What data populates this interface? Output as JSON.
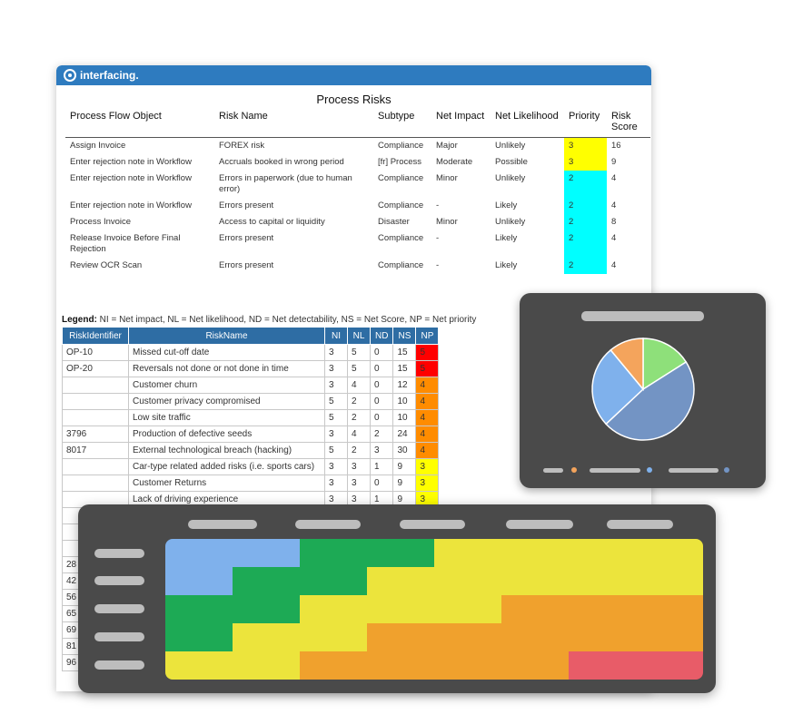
{
  "brand": {
    "name": "interfacing."
  },
  "report": {
    "title": "Process Risks",
    "columns": [
      "Process Flow Object",
      "Risk Name",
      "Subtype",
      "Net Impact",
      "Net Likelihood",
      "Priority",
      "Risk Score"
    ],
    "rows": [
      {
        "object": "Assign Invoice",
        "risk": "FOREX risk",
        "subtype": "Compliance",
        "impact": "Major",
        "likelihood": "Unlikely",
        "priority": "3",
        "score": "16"
      },
      {
        "object": "Enter rejection note in Workflow",
        "risk": "Accruals booked in wrong period",
        "subtype": "[fr] Process",
        "impact": "Moderate",
        "likelihood": "Possible",
        "priority": "3",
        "score": "9"
      },
      {
        "object": "Enter rejection note in Workflow",
        "risk": "Errors in paperwork (due to human error)",
        "subtype": "Compliance",
        "impact": "Minor",
        "likelihood": "Unlikely",
        "priority": "2",
        "score": "4"
      },
      {
        "object": "Enter rejection note in Workflow",
        "risk": "Errors present",
        "subtype": "Compliance",
        "impact": "-",
        "likelihood": "Likely",
        "priority": "2",
        "score": "4"
      },
      {
        "object": "Process Invoice",
        "risk": "Access to capital or liquidity",
        "subtype": "Disaster",
        "impact": "Minor",
        "likelihood": "Unlikely",
        "priority": "2",
        "score": "8"
      },
      {
        "object": "Release Invoice Before Final Rejection",
        "risk": "Errors present",
        "subtype": "Compliance",
        "impact": "-",
        "likelihood": "Likely",
        "priority": "2",
        "score": "4"
      },
      {
        "object": "Review OCR Scan",
        "risk": "Errors present",
        "subtype": "Compliance",
        "impact": "-",
        "likelihood": "Likely",
        "priority": "2",
        "score": "4"
      }
    ],
    "priority_colors": {
      "3": "#ffff00",
      "2": "#00ffff"
    }
  },
  "legend": {
    "label": "Legend:",
    "text": "NI = Net impact, NL = Net likelihood, ND = Net detectability, NS = Net Score, NP = Net priority",
    "columns": [
      "RiskIdentifier",
      "RiskName",
      "NI",
      "NL",
      "ND",
      "NS",
      "NP"
    ],
    "rows": [
      {
        "id": "OP-10",
        "name": "Missed cut-off date",
        "ni": "3",
        "nl": "5",
        "nd": "0",
        "ns": "15",
        "np": "5",
        "np_color": "#ff0000"
      },
      {
        "id": "OP-20",
        "name": "Reversals not done or not done in time",
        "ni": "3",
        "nl": "5",
        "nd": "0",
        "ns": "15",
        "np": "5",
        "np_color": "#ff0000"
      },
      {
        "id": "",
        "name": "Customer churn",
        "ni": "3",
        "nl": "4",
        "nd": "0",
        "ns": "12",
        "np": "4",
        "np_color": "#ff8c00"
      },
      {
        "id": "",
        "name": "Customer privacy compromised",
        "ni": "5",
        "nl": "2",
        "nd": "0",
        "ns": "10",
        "np": "4",
        "np_color": "#ff8c00"
      },
      {
        "id": "",
        "name": "Low site traffic",
        "ni": "5",
        "nl": "2",
        "nd": "0",
        "ns": "10",
        "np": "4",
        "np_color": "#ff8c00"
      },
      {
        "id": "3796",
        "name": "Production of defective seeds",
        "ni": "3",
        "nl": "4",
        "nd": "2",
        "ns": "24",
        "np": "4",
        "np_color": "#ff8c00"
      },
      {
        "id": "8017",
        "name": "External technological breach (hacking)",
        "ni": "5",
        "nl": "2",
        "nd": "3",
        "ns": "30",
        "np": "4",
        "np_color": "#ff8c00"
      },
      {
        "id": "",
        "name": "Car-type related added risks (i.e. sports cars)",
        "ni": "3",
        "nl": "3",
        "nd": "1",
        "ns": "9",
        "np": "3",
        "np_color": "#ffff00"
      },
      {
        "id": "",
        "name": "Customer Returns",
        "ni": "3",
        "nl": "3",
        "nd": "0",
        "ns": "9",
        "np": "3",
        "np_color": "#ffff00"
      },
      {
        "id": "",
        "name": "Lack of driving experience",
        "ni": "3",
        "nl": "3",
        "nd": "1",
        "ns": "9",
        "np": "3",
        "np_color": "#ffff00"
      },
      {
        "id": "",
        "name": "",
        "ni": "",
        "nl": "",
        "nd": "",
        "ns": "",
        "np": "",
        "np_color": ""
      },
      {
        "id": "",
        "name": "",
        "ni": "",
        "nl": "",
        "nd": "",
        "ns": "",
        "np": "",
        "np_color": ""
      },
      {
        "id": "",
        "name": "",
        "ni": "",
        "nl": "",
        "nd": "",
        "ns": "",
        "np": "",
        "np_color": ""
      },
      {
        "id": "28",
        "name": "",
        "ni": "",
        "nl": "",
        "nd": "",
        "ns": "",
        "np": "",
        "np_color": ""
      },
      {
        "id": "42",
        "name": "",
        "ni": "",
        "nl": "",
        "nd": "",
        "ns": "",
        "np": "",
        "np_color": ""
      },
      {
        "id": "56",
        "name": "",
        "ni": "",
        "nl": "",
        "nd": "",
        "ns": "",
        "np": "",
        "np_color": ""
      },
      {
        "id": "65",
        "name": "",
        "ni": "",
        "nl": "",
        "nd": "",
        "ns": "",
        "np": "",
        "np_color": ""
      },
      {
        "id": "69",
        "name": "",
        "ni": "",
        "nl": "",
        "nd": "",
        "ns": "",
        "np": "",
        "np_color": ""
      },
      {
        "id": "81",
        "name": "",
        "ni": "",
        "nl": "",
        "nd": "",
        "ns": "",
        "np": "",
        "np_color": ""
      },
      {
        "id": "96",
        "name": "",
        "ni": "",
        "nl": "",
        "nd": "",
        "ns": "",
        "np": "",
        "np_color": ""
      }
    ]
  },
  "pie_widget": {
    "slices": [
      {
        "value": 0.16,
        "color": "#8ee07a"
      },
      {
        "value": 0.47,
        "color": "#7394c4"
      },
      {
        "value": 0.26,
        "color": "#7fb1ec"
      },
      {
        "value": 0.11,
        "color": "#f4a45c"
      }
    ],
    "legend_dot_colors": [
      "#f4a45c",
      "#7fb1ec",
      "#7394c4"
    ]
  },
  "heatmap_widget": {
    "colors": {
      "blue": "#7fb1ec",
      "green": "#1daa55",
      "yellow": "#ece43c",
      "orange": "#f0a12d",
      "red": "#e85c68"
    },
    "rows": [
      [
        "blue",
        "blue",
        "green",
        "green",
        "yellow",
        "yellow",
        "yellow",
        "yellow"
      ],
      [
        "blue",
        "green",
        "green",
        "yellow",
        "yellow",
        "yellow",
        "yellow",
        "yellow"
      ],
      [
        "green",
        "green",
        "yellow",
        "yellow",
        "yellow",
        "orange",
        "orange",
        "orange"
      ],
      [
        "green",
        "yellow",
        "yellow",
        "orange",
        "orange",
        "orange",
        "orange",
        "orange"
      ],
      [
        "yellow",
        "yellow",
        "orange",
        "orange",
        "orange",
        "orange",
        "red",
        "red"
      ]
    ]
  }
}
